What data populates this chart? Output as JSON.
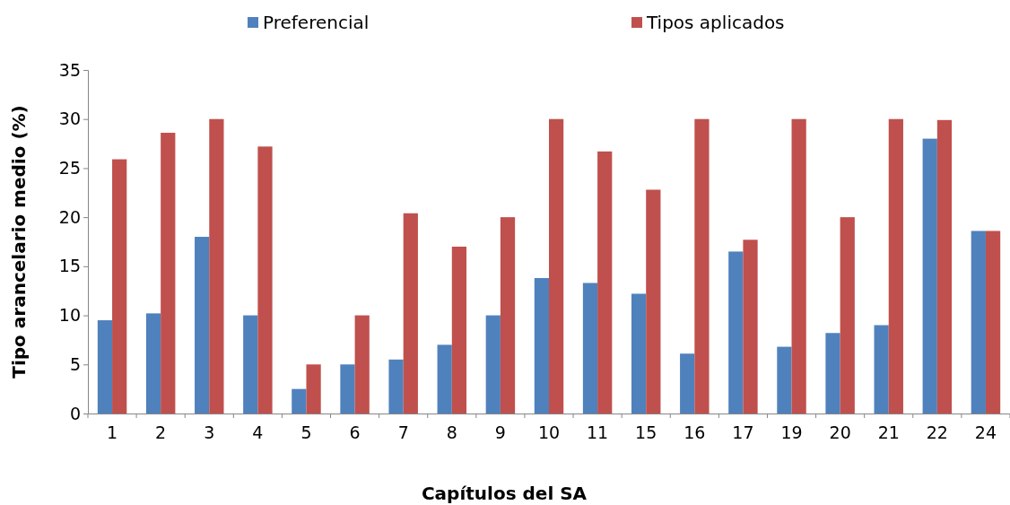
{
  "chart_data": {
    "type": "bar",
    "xlabel": "Capítulos del SA",
    "ylabel": "Tipo arancelario medio (%)",
    "categories": [
      "1",
      "2",
      "3",
      "4",
      "5",
      "6",
      "7",
      "8",
      "9",
      "10",
      "11",
      "15",
      "16",
      "17",
      "19",
      "20",
      "21",
      "22",
      "24"
    ],
    "series": [
      {
        "name": "Preferencial",
        "color": "#4f81bd",
        "values": [
          9.5,
          10.2,
          18,
          10,
          2.5,
          5,
          5.5,
          7,
          10,
          13.8,
          13.3,
          12.2,
          6.1,
          16.5,
          6.8,
          8.2,
          9,
          28,
          18.6
        ]
      },
      {
        "name": "Tipos aplicados",
        "color": "#c0504d",
        "values": [
          25.9,
          28.6,
          30,
          27.2,
          5,
          10,
          20.4,
          17,
          20,
          30,
          26.7,
          22.8,
          30,
          17.7,
          30,
          20,
          30,
          29.9,
          18.6
        ]
      }
    ],
    "ylim": [
      0,
      35
    ],
    "yticks": [
      0,
      5,
      10,
      15,
      20,
      25,
      30,
      35
    ],
    "grid": false,
    "legend": "top"
  }
}
